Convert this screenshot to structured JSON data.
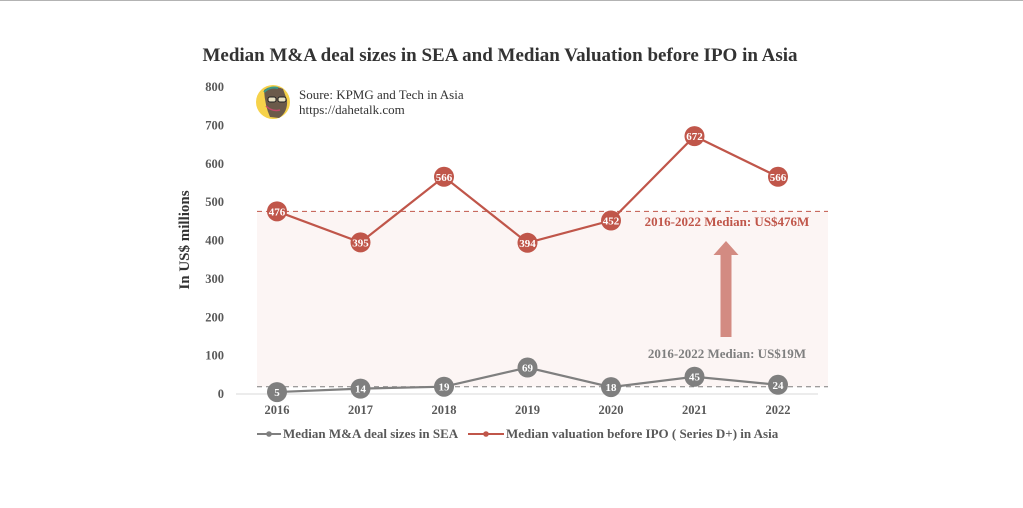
{
  "chart_data": {
    "type": "line",
    "title": "Median M&A deal sizes in SEA and Median Valuation before IPO in Asia",
    "xlabel": "",
    "ylabel": "In US$ millions",
    "ylim": [
      0,
      800
    ],
    "yticks": [
      0,
      100,
      200,
      300,
      400,
      500,
      600,
      700,
      800
    ],
    "ytick_labels": [
      "0",
      "100",
      "200",
      "300",
      "400",
      "500",
      "600",
      "700",
      "800"
    ],
    "categories": [
      "2016",
      "2017",
      "2018",
      "2019",
      "2020",
      "2021",
      "2022"
    ],
    "grid": false,
    "legend_position": "bottom",
    "series": [
      {
        "name": "Median M&A deal sizes in SEA",
        "color": "#7f7f7f",
        "values": [
          5,
          14,
          19,
          69,
          18,
          45,
          24
        ],
        "labels": [
          "5",
          "14",
          "19",
          "69",
          "18",
          "45",
          "24"
        ]
      },
      {
        "name": "Median valuation before IPO ( Series D+) in Asia",
        "color": "#c0564a",
        "values": [
          476,
          395,
          566,
          394,
          452,
          672,
          566
        ],
        "labels": [
          "476",
          "395",
          "566",
          "394",
          "452",
          "672",
          "566"
        ]
      }
    ],
    "reference_lines": [
      {
        "value": 476,
        "label": "2016-2022 Median: US$476M",
        "color": "#c0564a"
      },
      {
        "value": 19,
        "label": "2016-2022 Median: US$19M",
        "color": "#7f7f7f"
      }
    ],
    "shaded_band": {
      "from": 19,
      "to": 476,
      "color": "#fcf5f4"
    },
    "annotations": [
      {
        "type": "arrow",
        "direction": "up",
        "color": "#d38b82",
        "from_value": 150,
        "to_value": 400
      }
    ]
  },
  "source": {
    "line1": "Soure: KPMG and Tech in Asia",
    "line2": "https://dahetalk.com",
    "avatar": "author-avatar"
  }
}
